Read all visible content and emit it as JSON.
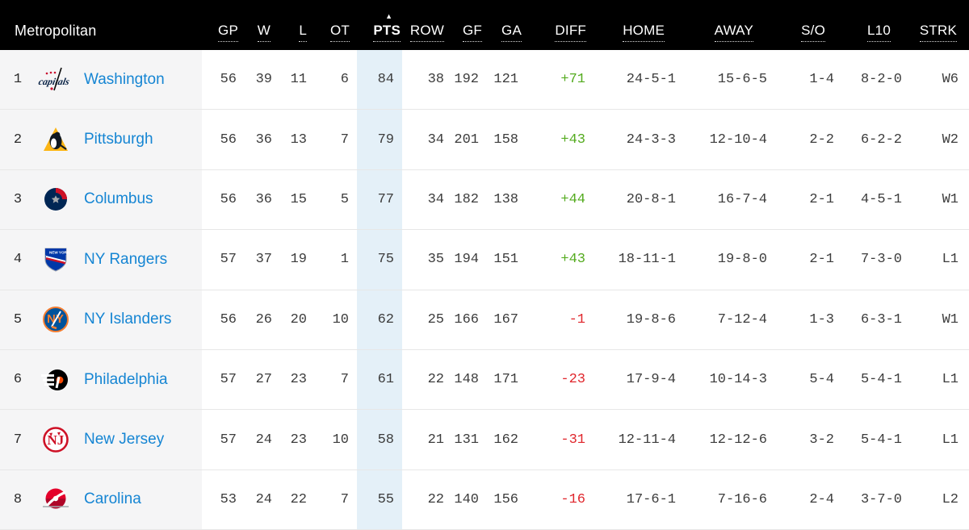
{
  "division": {
    "label": "Metropolitan"
  },
  "sort": {
    "icon": "▲",
    "column": "PTS"
  },
  "columns": [
    {
      "key": "gp",
      "label": "GP"
    },
    {
      "key": "w",
      "label": "W"
    },
    {
      "key": "l",
      "label": "L"
    },
    {
      "key": "ot",
      "label": "OT"
    },
    {
      "key": "pts",
      "label": "PTS"
    },
    {
      "key": "row",
      "label": "ROW"
    },
    {
      "key": "gf",
      "label": "GF"
    },
    {
      "key": "ga",
      "label": "GA"
    },
    {
      "key": "diff",
      "label": "DIFF"
    },
    {
      "key": "home",
      "label": "HOME"
    },
    {
      "key": "away",
      "label": "AWAY"
    },
    {
      "key": "so",
      "label": "S/O"
    },
    {
      "key": "l10",
      "label": "L10"
    },
    {
      "key": "strk",
      "label": "STRK"
    }
  ],
  "colors": {
    "header_bg": "#000000",
    "team_column_bg": "#f5f5f6",
    "pts_column_bg": "#e4f0f8",
    "link_blue": "#1585d3",
    "positive_diff": "#54ab1f",
    "negative_diff": "#e0262c"
  },
  "teams": [
    {
      "rank": "1",
      "name": "Washington",
      "logo": "capitals",
      "gp": "56",
      "w": "39",
      "l": "11",
      "ot": "6",
      "pts": "84",
      "row": "38",
      "gf": "192",
      "ga": "121",
      "diff": "+71",
      "home": "24-5-1",
      "away": "15-6-5",
      "so": "1-4",
      "l10": "8-2-0",
      "strk": "W6"
    },
    {
      "rank": "2",
      "name": "Pittsburgh",
      "logo": "penguins",
      "gp": "56",
      "w": "36",
      "l": "13",
      "ot": "7",
      "pts": "79",
      "row": "34",
      "gf": "201",
      "ga": "158",
      "diff": "+43",
      "home": "24-3-3",
      "away": "12-10-4",
      "so": "2-2",
      "l10": "6-2-2",
      "strk": "W2"
    },
    {
      "rank": "3",
      "name": "Columbus",
      "logo": "blue-jackets",
      "gp": "56",
      "w": "36",
      "l": "15",
      "ot": "5",
      "pts": "77",
      "row": "34",
      "gf": "182",
      "ga": "138",
      "diff": "+44",
      "home": "20-8-1",
      "away": "16-7-4",
      "so": "2-1",
      "l10": "4-5-1",
      "strk": "W1"
    },
    {
      "rank": "4",
      "name": "NY Rangers",
      "logo": "rangers",
      "gp": "57",
      "w": "37",
      "l": "19",
      "ot": "1",
      "pts": "75",
      "row": "35",
      "gf": "194",
      "ga": "151",
      "diff": "+43",
      "home": "18-11-1",
      "away": "19-8-0",
      "so": "2-1",
      "l10": "7-3-0",
      "strk": "L1"
    },
    {
      "rank": "5",
      "name": "NY Islanders",
      "logo": "islanders",
      "gp": "56",
      "w": "26",
      "l": "20",
      "ot": "10",
      "pts": "62",
      "row": "25",
      "gf": "166",
      "ga": "167",
      "diff": "-1",
      "home": "19-8-6",
      "away": "7-12-4",
      "so": "1-3",
      "l10": "6-3-1",
      "strk": "W1"
    },
    {
      "rank": "6",
      "name": "Philadelphia",
      "logo": "flyers",
      "gp": "57",
      "w": "27",
      "l": "23",
      "ot": "7",
      "pts": "61",
      "row": "22",
      "gf": "148",
      "ga": "171",
      "diff": "-23",
      "home": "17-9-4",
      "away": "10-14-3",
      "so": "5-4",
      "l10": "5-4-1",
      "strk": "L1"
    },
    {
      "rank": "7",
      "name": "New Jersey",
      "logo": "devils",
      "gp": "57",
      "w": "24",
      "l": "23",
      "ot": "10",
      "pts": "58",
      "row": "21",
      "gf": "131",
      "ga": "162",
      "diff": "-31",
      "home": "12-11-4",
      "away": "12-12-6",
      "so": "3-2",
      "l10": "5-4-1",
      "strk": "L1"
    },
    {
      "rank": "8",
      "name": "Carolina",
      "logo": "hurricanes",
      "gp": "53",
      "w": "24",
      "l": "22",
      "ot": "7",
      "pts": "55",
      "row": "22",
      "gf": "140",
      "ga": "156",
      "diff": "-16",
      "home": "17-6-1",
      "away": "7-16-6",
      "so": "2-4",
      "l10": "3-7-0",
      "strk": "L2"
    }
  ]
}
